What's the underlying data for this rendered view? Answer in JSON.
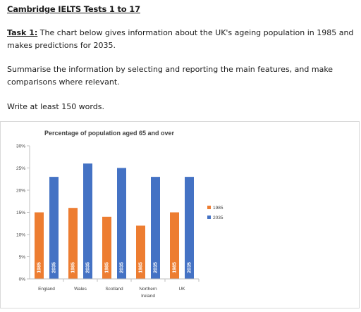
{
  "header": {
    "title": "Cambridge IELTS Tests 1 to 17"
  },
  "task": {
    "label": "Task 1:",
    "text": " The chart below gives information about the UK's ageing population in 1985 and makes predictions for 2035.",
    "instruction": "Summarise the information by selecting and reporting the main features, and make comparisons where relevant.",
    "word_count": "Write at least 150 words."
  },
  "chart_data": {
    "type": "bar",
    "title": "Percentage of population aged 65 and over",
    "xlabel": "",
    "ylabel": "",
    "ylim": [
      0,
      30
    ],
    "yticks": [
      "0%",
      "5%",
      "10%",
      "15%",
      "20%",
      "25%",
      "30%"
    ],
    "categories": [
      "England",
      "Wales",
      "Scotland",
      "Northern Ireland",
      "UK"
    ],
    "series": [
      {
        "name": "1985",
        "color": "#ED7D31",
        "values": [
          15,
          16,
          14,
          12,
          15
        ]
      },
      {
        "name": "2035",
        "color": "#4472C4",
        "values": [
          23,
          26,
          25,
          23,
          23
        ]
      }
    ],
    "legend_position": "right",
    "grid": false
  }
}
